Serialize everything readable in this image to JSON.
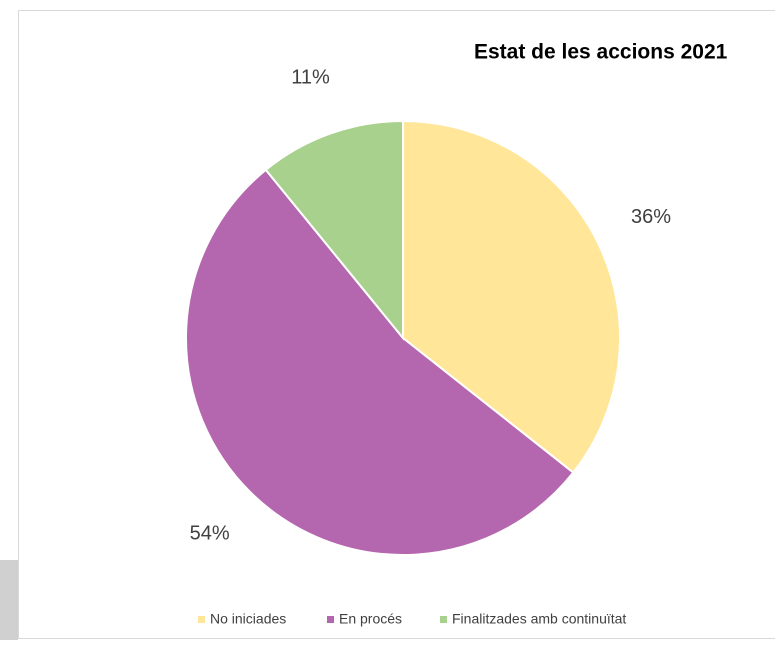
{
  "chart_data": {
    "type": "pie",
    "title": "Estat de les accions 2021",
    "categories": [
      "No iniciades",
      "En procés",
      "Finalitzades amb continuïtat"
    ],
    "values": [
      36,
      54,
      11
    ],
    "value_labels": [
      "36%",
      "54%",
      "11%"
    ],
    "colors": [
      "#FFE699",
      "#B467AE",
      "#A9D18E"
    ],
    "legend": "bottom"
  }
}
